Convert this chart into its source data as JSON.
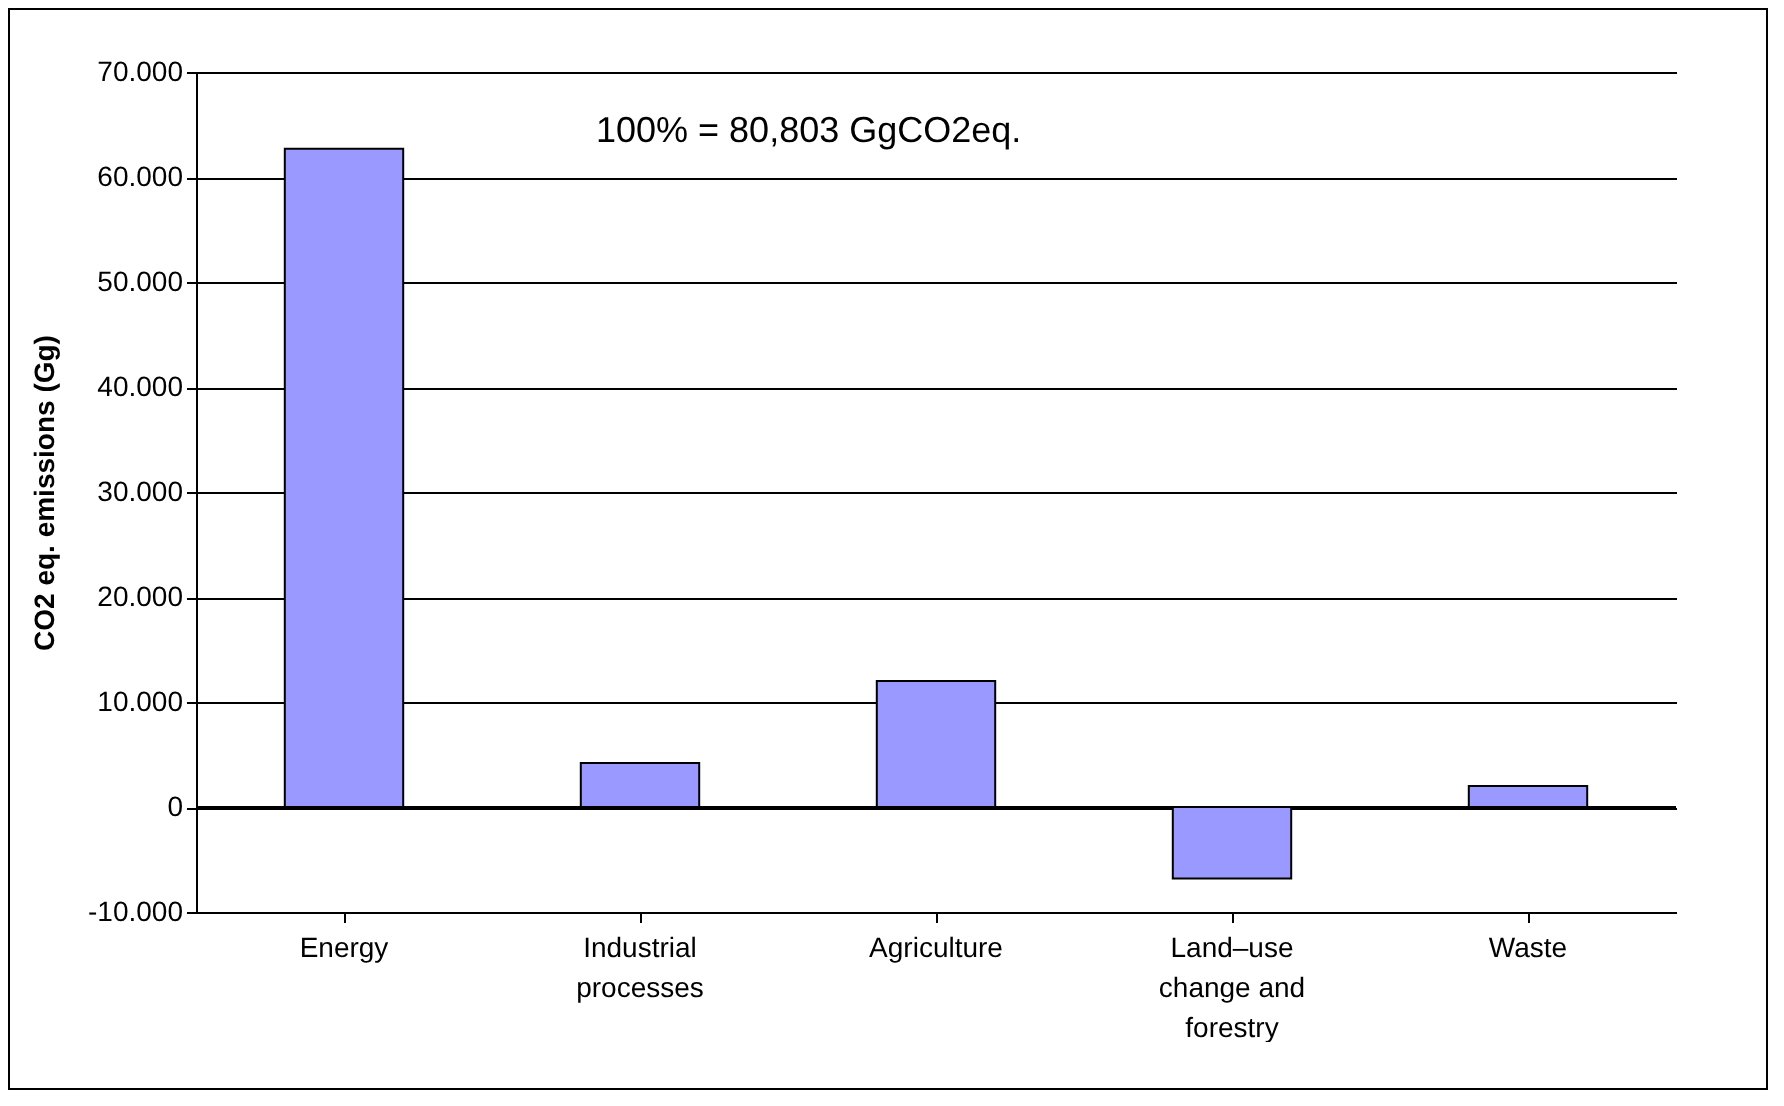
{
  "chart_data": {
    "type": "bar",
    "ylabel": "CO2 eq. emissions (Gg)",
    "categories": [
      "Energy",
      "Industrial processes",
      "Agriculture",
      "Land–use change and forestry",
      "Waste"
    ],
    "values": [
      62700,
      4200,
      12000,
      -6800,
      2000
    ],
    "color": "#9999ff",
    "ylim": [
      -10000,
      70000
    ],
    "yticks": [
      {
        "value": -10000,
        "label": "-10.000"
      },
      0,
      {
        "value": 10000,
        "label": "10.000"
      },
      {
        "value": 20000,
        "label": "20.000"
      },
      {
        "value": 30000,
        "label": "30.000"
      },
      {
        "value": 40000,
        "label": "40.000"
      },
      {
        "value": 50000,
        "label": "50.000"
      },
      {
        "value": 60000,
        "label": "60.000"
      },
      {
        "value": 70000,
        "label": "70.000"
      }
    ],
    "grid": "y",
    "annotations": [
      "100% = 80,803 GgCO2eq."
    ]
  }
}
